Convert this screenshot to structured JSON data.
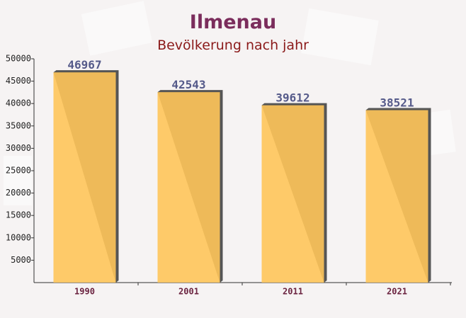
{
  "chart_data": {
    "type": "bar",
    "title": "Ilmenau",
    "subtitle": "Bevölkerung nach jahr",
    "categories": [
      "1990",
      "2001",
      "2011",
      "2021"
    ],
    "values": [
      46967,
      42543,
      39612,
      38521
    ],
    "color": "#ffc55a",
    "ylim": [
      0,
      50000
    ],
    "yticks": [
      5000,
      10000,
      15000,
      20000,
      25000,
      30000,
      35000,
      40000,
      45000,
      50000
    ]
  }
}
